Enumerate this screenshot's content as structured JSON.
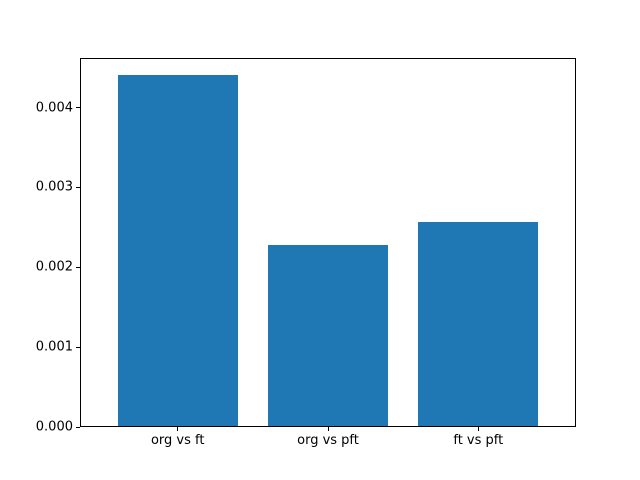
{
  "chart_data": {
    "type": "bar",
    "title": "",
    "xlabel": "",
    "ylabel": "",
    "categories": [
      "org vs ft",
      "org vs pft",
      "ft vs pft"
    ],
    "values": [
      0.0044,
      0.00227,
      0.00255
    ],
    "ylim": [
      0,
      0.00462
    ],
    "yticks": [
      0.0,
      0.001,
      0.002,
      0.003,
      0.004
    ],
    "ytick_labels": [
      "0.000",
      "0.001",
      "0.002",
      "0.003",
      "0.004"
    ],
    "bar_color": "#1f77b4",
    "background_color": "#ffffff",
    "spine_color": "#000000",
    "grid": false,
    "legend": false,
    "bar_width_fraction": 0.8
  }
}
